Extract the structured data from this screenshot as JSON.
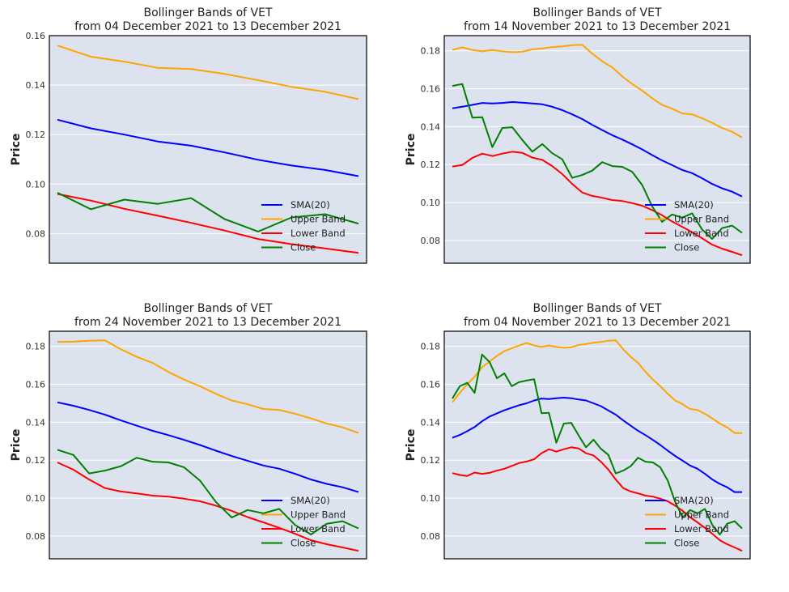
{
  "chart_data": [
    {
      "type": "line",
      "title_line1": "Bollinger Bands of VET",
      "title_line2": "from 04 December 2021 to 13 December 2021",
      "xlabel": "",
      "ylabel": "Price",
      "ylim": [
        0.068,
        0.16
      ],
      "yticks": [
        0.08,
        0.1,
        0.12,
        0.14,
        0.16
      ],
      "ytick_labels": [
        "0.08",
        "0.10",
        "0.12",
        "0.14",
        "0.16"
      ],
      "legend_position": "lower-right",
      "grid": true,
      "x": [
        0,
        1,
        2,
        3,
        4,
        5,
        6,
        7,
        8,
        9
      ],
      "series": [
        {
          "name": "SMA(20)",
          "color": "#0000ff",
          "values": [
            0.126,
            0.1225,
            0.12,
            0.1172,
            0.1155,
            0.1128,
            0.1098,
            0.1075,
            0.1057,
            0.1032
          ]
        },
        {
          "name": "Upper Band",
          "color": "#ffa500",
          "values": [
            0.156,
            0.1515,
            0.1495,
            0.147,
            0.1465,
            0.1445,
            0.142,
            0.1393,
            0.1373,
            0.1343
          ]
        },
        {
          "name": "Lower Band",
          "color": "#ff0000",
          "values": [
            0.096,
            0.0933,
            0.09,
            0.0872,
            0.0843,
            0.0812,
            0.0778,
            0.0757,
            0.074,
            0.0722
          ]
        },
        {
          "name": "Close",
          "color": "#008000",
          "values": [
            0.0965,
            0.0898,
            0.0937,
            0.092,
            0.0943,
            0.0858,
            0.0808,
            0.0865,
            0.0878,
            0.084
          ]
        }
      ]
    },
    {
      "type": "line",
      "title_line1": "Bollinger Bands of VET",
      "title_line2": "from 14 November 2021 to 13 December 2021",
      "xlabel": "",
      "ylabel": "Price",
      "ylim": [
        0.068,
        0.188
      ],
      "yticks": [
        0.08,
        0.1,
        0.12,
        0.14,
        0.16,
        0.18
      ],
      "ytick_labels": [
        "0.08",
        "0.10",
        "0.12",
        "0.14",
        "0.16",
        "0.18"
      ],
      "legend_position": "lower-right",
      "grid": true,
      "x": [
        0,
        1,
        2,
        3,
        4,
        5,
        6,
        7,
        8,
        9,
        10,
        11,
        12,
        13,
        14,
        15,
        16,
        17,
        18,
        19,
        20,
        21,
        22,
        23,
        24,
        25,
        26,
        27,
        28,
        29
      ],
      "series": [
        {
          "name": "SMA(20)",
          "color": "#0000ff",
          "values": [
            0.1497,
            0.1505,
            0.1515,
            0.1525,
            0.1522,
            0.1525,
            0.153,
            0.1527,
            0.1522,
            0.1518,
            0.1505,
            0.1487,
            0.1465,
            0.144,
            0.141,
            0.1382,
            0.1355,
            0.1332,
            0.1307,
            0.128,
            0.125,
            0.1222,
            0.1197,
            0.1172,
            0.1155,
            0.1128,
            0.1098,
            0.1075,
            0.1057,
            0.1032
          ]
        },
        {
          "name": "Upper Band",
          "color": "#ffa500",
          "values": [
            0.1805,
            0.1818,
            0.1805,
            0.1797,
            0.1805,
            0.1797,
            0.1793,
            0.1795,
            0.1808,
            0.1812,
            0.182,
            0.1823,
            0.183,
            0.1832,
            0.1785,
            0.1745,
            0.1713,
            0.1665,
            0.1625,
            0.159,
            0.155,
            0.1515,
            0.1495,
            0.147,
            0.1465,
            0.1445,
            0.142,
            0.1393,
            0.1373,
            0.1343
          ]
        },
        {
          "name": "Lower Band",
          "color": "#ff0000",
          "values": [
            0.119,
            0.1198,
            0.1235,
            0.1258,
            0.1245,
            0.1258,
            0.1268,
            0.1262,
            0.1237,
            0.1225,
            0.1192,
            0.115,
            0.1098,
            0.1053,
            0.1035,
            0.1025,
            0.1013,
            0.1008,
            0.0997,
            0.0983,
            0.096,
            0.0933,
            0.09,
            0.0872,
            0.0843,
            0.0812,
            0.0778,
            0.0757,
            0.074,
            0.0722
          ]
        },
        {
          "name": "Close",
          "color": "#008000",
          "values": [
            0.1615,
            0.1625,
            0.1448,
            0.145,
            0.1292,
            0.1393,
            0.1397,
            0.133,
            0.1268,
            0.1308,
            0.126,
            0.1228,
            0.113,
            0.1145,
            0.1168,
            0.1213,
            0.1192,
            0.1188,
            0.1162,
            0.1092,
            0.098,
            0.0898,
            0.0937,
            0.092,
            0.0943,
            0.0858,
            0.0808,
            0.0865,
            0.0878,
            0.084
          ]
        }
      ]
    },
    {
      "type": "line",
      "title_line1": "Bollinger Bands of VET",
      "title_line2": "from 24 November 2021 to 13 December 2021",
      "xlabel": "",
      "ylabel": "Price",
      "ylim": [
        0.068,
        0.188
      ],
      "yticks": [
        0.08,
        0.1,
        0.12,
        0.14,
        0.16,
        0.18
      ],
      "ytick_labels": [
        "0.08",
        "0.10",
        "0.12",
        "0.14",
        "0.16",
        "0.18"
      ],
      "legend_position": "lower-right",
      "grid": true,
      "x": [
        0,
        1,
        2,
        3,
        4,
        5,
        6,
        7,
        8,
        9,
        10,
        11,
        12,
        13,
        14,
        15,
        16,
        17,
        18,
        19
      ],
      "series": [
        {
          "name": "SMA(20)",
          "color": "#0000ff",
          "values": [
            0.1505,
            0.1487,
            0.1465,
            0.144,
            0.141,
            0.1382,
            0.1355,
            0.1332,
            0.1307,
            0.128,
            0.125,
            0.1222,
            0.1197,
            0.1172,
            0.1155,
            0.1128,
            0.1098,
            0.1075,
            0.1057,
            0.1032
          ]
        },
        {
          "name": "Upper Band",
          "color": "#ffa500",
          "values": [
            0.1823,
            0.1825,
            0.183,
            0.1832,
            0.1785,
            0.1745,
            0.1713,
            0.1665,
            0.1625,
            0.159,
            0.155,
            0.1515,
            0.1495,
            0.147,
            0.1465,
            0.1445,
            0.142,
            0.1393,
            0.1373,
            0.1343
          ]
        },
        {
          "name": "Lower Band",
          "color": "#ff0000",
          "values": [
            0.1188,
            0.115,
            0.1098,
            0.1053,
            0.1035,
            0.1025,
            0.1013,
            0.1008,
            0.0997,
            0.0983,
            0.096,
            0.0933,
            0.09,
            0.0872,
            0.0843,
            0.0812,
            0.0778,
            0.0757,
            0.074,
            0.0722
          ]
        },
        {
          "name": "Close",
          "color": "#008000",
          "values": [
            0.1255,
            0.1228,
            0.113,
            0.1145,
            0.1168,
            0.1213,
            0.1192,
            0.1188,
            0.1162,
            0.1092,
            0.098,
            0.0898,
            0.0937,
            0.092,
            0.0943,
            0.0858,
            0.0808,
            0.0865,
            0.0878,
            0.084
          ]
        }
      ]
    },
    {
      "type": "line",
      "title_line1": "Bollinger Bands of VET",
      "title_line2": "from 04 November 2021 to 13 December 2021",
      "xlabel": "",
      "ylabel": "Price",
      "ylim": [
        0.068,
        0.188
      ],
      "yticks": [
        0.08,
        0.1,
        0.12,
        0.14,
        0.16,
        0.18
      ],
      "ytick_labels": [
        "0.08",
        "0.10",
        "0.12",
        "0.14",
        "0.16",
        "0.18"
      ],
      "legend_position": "lower-right",
      "grid": true,
      "x": [
        0,
        1,
        2,
        3,
        4,
        5,
        6,
        7,
        8,
        9,
        10,
        11,
        12,
        13,
        14,
        15,
        16,
        17,
        18,
        19,
        20,
        21,
        22,
        23,
        24,
        25,
        26,
        27,
        28,
        29,
        30,
        31,
        32,
        33,
        34,
        35,
        36,
        37,
        38,
        39
      ],
      "series": [
        {
          "name": "SMA(20)",
          "color": "#0000ff",
          "values": [
            0.1318,
            0.1333,
            0.1353,
            0.1375,
            0.1405,
            0.143,
            0.1447,
            0.1463,
            0.1477,
            0.149,
            0.15,
            0.1515,
            0.1525,
            0.1522,
            0.1527,
            0.153,
            0.1527,
            0.152,
            0.1515,
            0.15,
            0.1485,
            0.1462,
            0.144,
            0.141,
            0.1382,
            0.1355,
            0.1332,
            0.1307,
            0.128,
            0.125,
            0.1222,
            0.1197,
            0.1172,
            0.1155,
            0.1128,
            0.1098,
            0.1075,
            0.1057,
            0.1032,
            0.1032
          ]
        },
        {
          "name": "Upper Band",
          "color": "#ffa500",
          "values": [
            0.1505,
            0.1555,
            0.16,
            0.164,
            0.169,
            0.172,
            0.175,
            0.1775,
            0.179,
            0.1805,
            0.1818,
            0.1805,
            0.1797,
            0.1805,
            0.1797,
            0.1793,
            0.1795,
            0.1808,
            0.1812,
            0.182,
            0.1823,
            0.183,
            0.1832,
            0.1785,
            0.1745,
            0.1713,
            0.1665,
            0.1625,
            0.159,
            0.155,
            0.1515,
            0.1495,
            0.147,
            0.1465,
            0.1445,
            0.142,
            0.1393,
            0.1373,
            0.1343,
            0.1343
          ]
        },
        {
          "name": "Lower Band",
          "color": "#ff0000",
          "values": [
            0.1132,
            0.1122,
            0.1117,
            0.1135,
            0.1128,
            0.1133,
            0.1145,
            0.1155,
            0.117,
            0.1185,
            0.1193,
            0.1205,
            0.1237,
            0.1258,
            0.1245,
            0.1258,
            0.1268,
            0.1262,
            0.1237,
            0.1225,
            0.1192,
            0.115,
            0.1098,
            0.1053,
            0.1035,
            0.1025,
            0.1013,
            0.1008,
            0.0997,
            0.0983,
            0.096,
            0.0933,
            0.09,
            0.0872,
            0.0843,
            0.0812,
            0.0778,
            0.0757,
            0.074,
            0.0722
          ]
        },
        {
          "name": "Close",
          "color": "#008000",
          "values": [
            0.1525,
            0.159,
            0.1608,
            0.1555,
            0.1757,
            0.1718,
            0.1632,
            0.1658,
            0.159,
            0.1612,
            0.162,
            0.1627,
            0.1448,
            0.145,
            0.1292,
            0.1393,
            0.1397,
            0.133,
            0.1268,
            0.1308,
            0.126,
            0.1228,
            0.113,
            0.1145,
            0.1168,
            0.1213,
            0.1192,
            0.1188,
            0.1162,
            0.1092,
            0.098,
            0.0898,
            0.0937,
            0.092,
            0.0943,
            0.0858,
            0.0808,
            0.0865,
            0.0878,
            0.084
          ]
        }
      ]
    }
  ]
}
